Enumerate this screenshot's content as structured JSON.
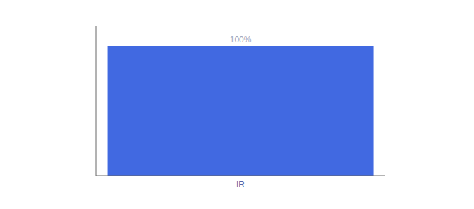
{
  "chart_data": {
    "type": "bar",
    "categories": [
      "IR"
    ],
    "values": [
      100
    ],
    "value_labels": [
      "100%"
    ],
    "data_labels": true,
    "color": "#4169e1",
    "ylim": [
      0,
      115
    ],
    "grid": false,
    "tick_labels": "x"
  }
}
